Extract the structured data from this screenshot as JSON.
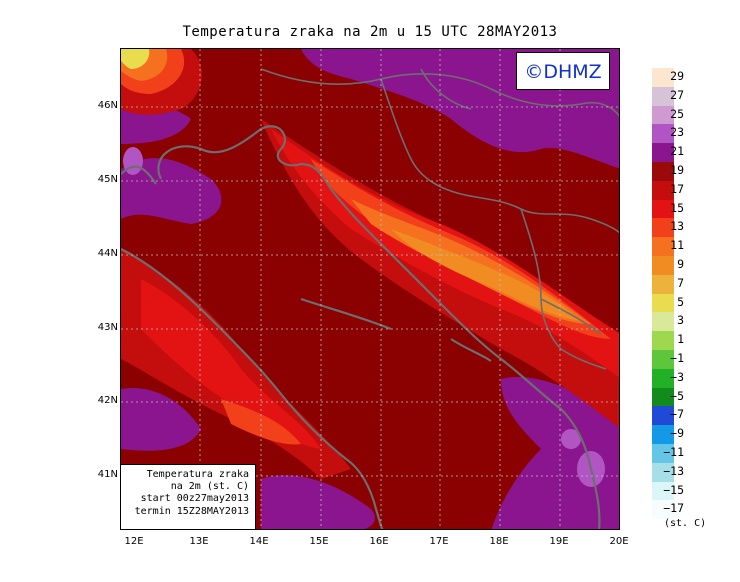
{
  "title": "Temperatura zraka na 2m u 15 UTC 28MAY2013",
  "logo_text": "©DHMZ",
  "info_box": {
    "line1": "Temperatura zraka",
    "line2": "na 2m (st. C)",
    "line3": "start 00z27may2013",
    "line4": "termin 15Z28MAY2013"
  },
  "lat_ticks": [
    "46N",
    "45N",
    "44N",
    "43N",
    "42N",
    "41N"
  ],
  "lon_ticks": [
    "12E",
    "13E",
    "14E",
    "15E",
    "16E",
    "17E",
    "18E",
    "19E",
    "20E"
  ],
  "legend": {
    "unit": "(st. C)",
    "levels": [
      "29",
      "27",
      "25",
      "23",
      "21",
      "19",
      "17",
      "15",
      "13",
      "11",
      "9",
      "7",
      "5",
      "3",
      "1",
      "−1",
      "−3",
      "−5",
      "−7",
      "−9",
      "−11",
      "−13",
      "−15",
      "−17"
    ],
    "colors": [
      "#fde6d0",
      "#d7c3d7",
      "#cf9ad2",
      "#b155c4",
      "#8a158f",
      "#9b0a0a",
      "#c40d0d",
      "#e31313",
      "#f2401a",
      "#f6711f",
      "#f08c22",
      "#ecb23b",
      "#e9dc4f",
      "#d8ea9a",
      "#9ed84f",
      "#5ec63a",
      "#22b126",
      "#128a1c",
      "#2049d6",
      "#1399e6",
      "#64c6e6",
      "#a6dfe8",
      "#dbf6f6",
      "#f7fdfd"
    ]
  }
}
